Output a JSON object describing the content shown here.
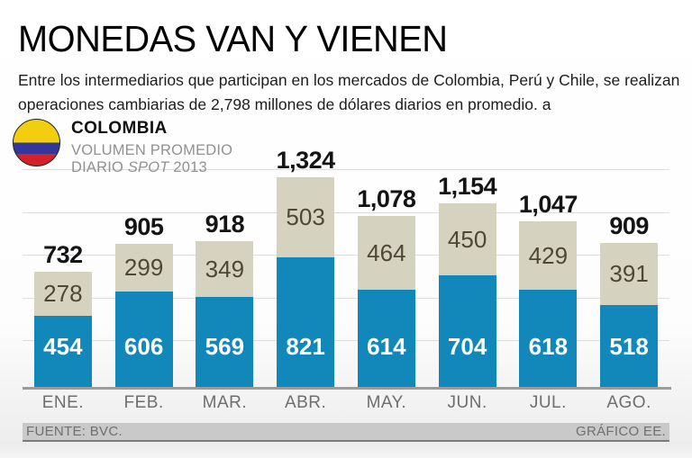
{
  "header": {
    "title": "MONEDAS VAN Y VIENEN",
    "subtitle": "Entre los intermediarios que participan en los mercados de Colombia, Perú y Chile, se realizan operaciones cambiarias de 2,798 millones de dólares diarios en promedio. a"
  },
  "legend": {
    "country": "COLOMBIA",
    "line1": "VOLUMEN PROMEDIO",
    "line2_prefix": "DIARIO ",
    "line2_italic": "SPOT",
    "line2_suffix": " 2013",
    "flag_colors": {
      "yellow": "#F2CE10",
      "blue": "#32379B",
      "red": "#D42127"
    }
  },
  "chart_data": {
    "type": "bar",
    "stacked": true,
    "title": "MONEDAS VAN Y VIENEN",
    "categories": [
      "ENE.",
      "FEB.",
      "MAR.",
      "ABR.",
      "MAY.",
      "JUN.",
      "JUL.",
      "AGO."
    ],
    "series": [
      {
        "name": "segment-lower-blue",
        "color": "#1187BA",
        "values": [
          454,
          606,
          569,
          821,
          614,
          704,
          618,
          518
        ]
      },
      {
        "name": "segment-upper-beige",
        "color": "#D6D2C0",
        "values": [
          278,
          299,
          349,
          503,
          464,
          450,
          429,
          391
        ]
      }
    ],
    "totals": [
      "732",
      "905",
      "918",
      "1,324",
      "1,078",
      "1,154",
      "1,047",
      "909"
    ],
    "ylim": [
      0,
      1400
    ],
    "grid": "horizontal",
    "legend_position": "none"
  },
  "footer": {
    "source": "FUENTE: BVC.",
    "credit": "GRÁFICO EE."
  }
}
